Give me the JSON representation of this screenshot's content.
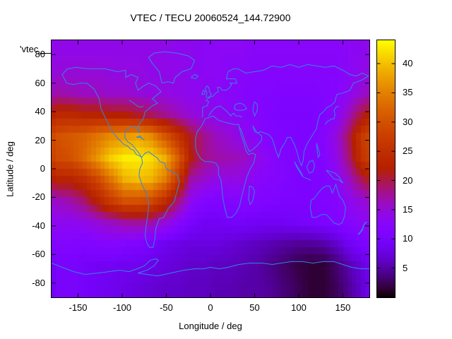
{
  "title": "VTEC / TECU 20060524_144.72900",
  "key_label": "'vtec_",
  "axes": {
    "x": {
      "label": "Longitude / deg",
      "range": [
        -180,
        180
      ],
      "ticks": [
        -150,
        -100,
        -50,
        0,
        50,
        100,
        150
      ]
    },
    "y": {
      "label": "Latitude / deg",
      "range": [
        -90,
        90
      ],
      "ticks": [
        80,
        60,
        40,
        20,
        0,
        -20,
        -40,
        -60,
        -80
      ]
    }
  },
  "colorbar": {
    "range": [
      0,
      44
    ],
    "ticks": [
      5,
      10,
      15,
      20,
      25,
      30,
      35,
      40
    ],
    "palette": "gnuplot-rgbformulae-7-5-15"
  },
  "colors": {
    "coastline": "#3585e0",
    "border": "#000000",
    "background": "#ffffff",
    "text": "#000000"
  },
  "chart_data": {
    "type": "heatmap",
    "title": "VTEC / TECU 20060524_144.72900",
    "xlabel": "Longitude / deg",
    "ylabel": "Latitude / deg",
    "units": "TECU",
    "value_range": [
      0,
      44
    ],
    "lon_centers": [
      -172.5,
      -157.5,
      -142.5,
      -127.5,
      -112.5,
      -97.5,
      -82.5,
      -67.5,
      -52.5,
      -37.5,
      -22.5,
      -7.5,
      7.5,
      22.5,
      37.5,
      52.5,
      67.5,
      82.5,
      97.5,
      112.5,
      127.5,
      142.5,
      157.5,
      172.5
    ],
    "lat_centers": [
      82.5,
      67.5,
      52.5,
      37.5,
      22.5,
      7.5,
      -7.5,
      -22.5,
      -37.5,
      -52.5,
      -67.5,
      -82.5
    ],
    "values": [
      [
        14,
        14,
        14,
        14,
        14,
        14,
        14,
        14,
        14,
        13.5,
        13.5,
        13,
        13,
        13,
        13,
        12.5,
        12.5,
        12.5,
        12.5,
        12.5,
        12.5,
        12.5,
        13,
        13.5
      ],
      [
        15,
        15,
        15,
        15,
        14.5,
        14.5,
        14.5,
        14,
        14,
        14,
        13.5,
        13,
        13,
        12.5,
        12.5,
        12,
        12,
        12,
        12,
        12,
        12,
        12,
        13,
        14
      ],
      [
        17,
        16.5,
        16,
        16,
        15.5,
        15.5,
        15,
        14.5,
        14.5,
        14,
        13.5,
        13.5,
        13,
        12.5,
        12,
        11.5,
        11.5,
        11,
        11,
        11,
        11.5,
        12,
        13.5,
        15.5
      ],
      [
        24,
        24,
        23,
        23,
        22,
        22,
        21,
        19.5,
        18,
        16.5,
        15,
        14,
        13.5,
        13,
        12.5,
        12,
        11,
        10.5,
        10.5,
        10.5,
        11,
        12.5,
        16.5,
        21
      ],
      [
        30,
        31,
        32,
        34,
        36,
        37,
        38,
        36,
        31,
        26,
        21,
        18,
        16,
        15,
        13.5,
        12.5,
        11.5,
        11,
        10.5,
        11,
        12,
        14.5,
        20,
        27
      ],
      [
        29,
        30,
        33,
        37,
        41,
        43,
        43,
        42,
        39,
        32,
        22,
        18,
        17,
        16.5,
        16,
        14,
        12.5,
        11.5,
        11,
        11,
        11.5,
        14,
        19,
        26
      ],
      [
        23,
        23,
        25,
        29,
        34,
        39,
        40,
        39,
        35,
        27,
        17,
        15.5,
        14,
        14.5,
        14,
        12.5,
        12,
        11.5,
        10.5,
        10.5,
        11,
        12.5,
        16,
        20
      ],
      [
        16,
        17,
        19,
        23,
        27,
        30,
        30,
        29,
        25,
        19,
        13.5,
        11.5,
        11,
        11.5,
        12,
        11.5,
        11,
        10.5,
        10.5,
        10.5,
        11,
        12,
        13.5,
        15
      ],
      [
        13.5,
        13.5,
        14,
        15,
        16,
        17,
        17.5,
        17,
        15,
        12.5,
        10,
        9,
        9,
        9.5,
        9.5,
        9,
        9,
        9,
        9.5,
        10,
        10.5,
        11,
        12,
        13
      ],
      [
        11.5,
        11.5,
        11,
        11.5,
        12,
        11.5,
        11,
        10,
        8.5,
        8,
        7.5,
        7.5,
        7.5,
        7,
        6.5,
        6,
        5.5,
        5,
        4.5,
        4.5,
        5,
        6.5,
        9,
        10.5
      ],
      [
        10,
        10,
        9.5,
        9,
        9,
        8.5,
        8.5,
        8,
        7.5,
        7,
        6.5,
        6.5,
        6,
        6,
        5.5,
        5,
        4,
        3,
        2,
        1.5,
        1.5,
        3,
        5.5,
        7.5
      ],
      [
        10,
        10,
        9.5,
        9,
        8.5,
        8,
        7.5,
        7,
        6.5,
        6.5,
        6,
        6,
        5.5,
        5.5,
        5,
        5,
        4.5,
        3.5,
        2.5,
        1.5,
        1.5,
        2.5,
        4.5,
        7
      ]
    ]
  }
}
